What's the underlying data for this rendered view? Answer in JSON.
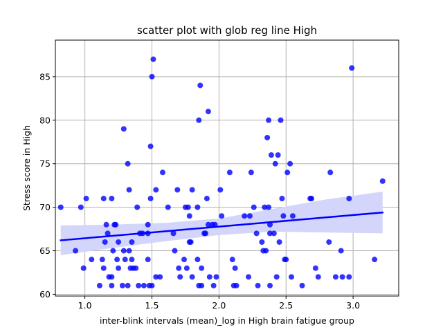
{
  "chart_data": {
    "type": "scatter",
    "title": "scatter plot with glob reg line High",
    "xlabel": "inter-blink intervals (mean)_log in High brain fatigue group",
    "ylabel": "Stress score in High",
    "xlim": [
      0.78,
      3.34
    ],
    "ylim": [
      59.8,
      89.2
    ],
    "xticks": [
      1.0,
      1.5,
      2.0,
      2.5,
      3.0
    ],
    "xtick_labels": [
      "1.0",
      "1.5",
      "2.0",
      "2.5",
      "3.0"
    ],
    "yticks": [
      60,
      65,
      70,
      75,
      80,
      85
    ],
    "ytick_labels": [
      "60",
      "65",
      "70",
      "75",
      "80",
      "85"
    ],
    "grid": true,
    "point_color": "#0000ff",
    "regression": {
      "color": "#0000ff",
      "start": [
        0.82,
        66.2
      ],
      "end": [
        3.22,
        69.4
      ],
      "ci_band_color": "#d3d5fb",
      "ci_band": [
        [
          0.82,
          64.5,
          67.9
        ],
        [
          1.2,
          65.3,
          68.0
        ],
        [
          1.6,
          66.1,
          68.2
        ],
        [
          2.0,
          66.8,
          68.7
        ],
        [
          2.4,
          67.2,
          69.8
        ],
        [
          2.8,
          67.1,
          70.9
        ],
        [
          3.22,
          67.0,
          71.8
        ]
      ]
    },
    "points": [
      {
        "x": 0.82,
        "y": 70
      },
      {
        "x": 0.93,
        "y": 65
      },
      {
        "x": 0.97,
        "y": 70
      },
      {
        "x": 0.99,
        "y": 63
      },
      {
        "x": 1.01,
        "y": 71
      },
      {
        "x": 1.05,
        "y": 64
      },
      {
        "x": 1.11,
        "y": 61
      },
      {
        "x": 1.13,
        "y": 64
      },
      {
        "x": 1.14,
        "y": 71
      },
      {
        "x": 1.14,
        "y": 63
      },
      {
        "x": 1.15,
        "y": 66
      },
      {
        "x": 1.16,
        "y": 68
      },
      {
        "x": 1.17,
        "y": 67
      },
      {
        "x": 1.18,
        "y": 62
      },
      {
        "x": 1.2,
        "y": 71
      },
      {
        "x": 1.2,
        "y": 62
      },
      {
        "x": 1.2,
        "y": 61
      },
      {
        "x": 1.21,
        "y": 65
      },
      {
        "x": 1.22,
        "y": 68
      },
      {
        "x": 1.23,
        "y": 68
      },
      {
        "x": 1.24,
        "y": 64
      },
      {
        "x": 1.25,
        "y": 63
      },
      {
        "x": 1.25,
        "y": 66
      },
      {
        "x": 1.28,
        "y": 61
      },
      {
        "x": 1.29,
        "y": 65
      },
      {
        "x": 1.29,
        "y": 79
      },
      {
        "x": 1.3,
        "y": 64
      },
      {
        "x": 1.32,
        "y": 75
      },
      {
        "x": 1.32,
        "y": 61
      },
      {
        "x": 1.33,
        "y": 72
      },
      {
        "x": 1.33,
        "y": 65
      },
      {
        "x": 1.34,
        "y": 63
      },
      {
        "x": 1.35,
        "y": 66
      },
      {
        "x": 1.35,
        "y": 64
      },
      {
        "x": 1.36,
        "y": 63
      },
      {
        "x": 1.38,
        "y": 63
      },
      {
        "x": 1.39,
        "y": 70
      },
      {
        "x": 1.4,
        "y": 61
      },
      {
        "x": 1.41,
        "y": 67
      },
      {
        "x": 1.43,
        "y": 67
      },
      {
        "x": 1.44,
        "y": 61
      },
      {
        "x": 1.47,
        "y": 68
      },
      {
        "x": 1.47,
        "y": 67
      },
      {
        "x": 1.47,
        "y": 64
      },
      {
        "x": 1.48,
        "y": 61
      },
      {
        "x": 1.49,
        "y": 77
      },
      {
        "x": 1.49,
        "y": 71
      },
      {
        "x": 1.5,
        "y": 85
      },
      {
        "x": 1.5,
        "y": 61
      },
      {
        "x": 1.51,
        "y": 87
      },
      {
        "x": 1.53,
        "y": 72
      },
      {
        "x": 1.53,
        "y": 62
      },
      {
        "x": 1.56,
        "y": 62
      },
      {
        "x": 1.58,
        "y": 74
      },
      {
        "x": 1.62,
        "y": 70
      },
      {
        "x": 1.66,
        "y": 67
      },
      {
        "x": 1.67,
        "y": 65
      },
      {
        "x": 1.69,
        "y": 72
      },
      {
        "x": 1.7,
        "y": 63
      },
      {
        "x": 1.71,
        "y": 62
      },
      {
        "x": 1.74,
        "y": 64
      },
      {
        "x": 1.75,
        "y": 70
      },
      {
        "x": 1.76,
        "y": 63
      },
      {
        "x": 1.77,
        "y": 70
      },
      {
        "x": 1.78,
        "y": 69
      },
      {
        "x": 1.78,
        "y": 66
      },
      {
        "x": 1.79,
        "y": 66
      },
      {
        "x": 1.8,
        "y": 62
      },
      {
        "x": 1.8,
        "y": 72
      },
      {
        "x": 1.84,
        "y": 70
      },
      {
        "x": 1.84,
        "y": 64
      },
      {
        "x": 1.85,
        "y": 61
      },
      {
        "x": 1.85,
        "y": 80
      },
      {
        "x": 1.86,
        "y": 84
      },
      {
        "x": 1.87,
        "y": 63
      },
      {
        "x": 1.87,
        "y": 61
      },
      {
        "x": 1.89,
        "y": 67
      },
      {
        "x": 1.9,
        "y": 67
      },
      {
        "x": 1.91,
        "y": 71
      },
      {
        "x": 1.92,
        "y": 68
      },
      {
        "x": 1.92,
        "y": 81
      },
      {
        "x": 1.93,
        "y": 62
      },
      {
        "x": 1.95,
        "y": 68
      },
      {
        "x": 1.96,
        "y": 61
      },
      {
        "x": 1.97,
        "y": 68
      },
      {
        "x": 1.98,
        "y": 62
      },
      {
        "x": 2.01,
        "y": 72
      },
      {
        "x": 2.02,
        "y": 69
      },
      {
        "x": 2.08,
        "y": 74
      },
      {
        "x": 2.1,
        "y": 64
      },
      {
        "x": 2.11,
        "y": 61
      },
      {
        "x": 2.12,
        "y": 63
      },
      {
        "x": 2.13,
        "y": 61
      },
      {
        "x": 2.19,
        "y": 69
      },
      {
        "x": 2.22,
        "y": 62
      },
      {
        "x": 2.23,
        "y": 69
      },
      {
        "x": 2.24,
        "y": 74
      },
      {
        "x": 2.26,
        "y": 70
      },
      {
        "x": 2.28,
        "y": 67
      },
      {
        "x": 2.29,
        "y": 61
      },
      {
        "x": 2.32,
        "y": 66
      },
      {
        "x": 2.33,
        "y": 65
      },
      {
        "x": 2.34,
        "y": 70
      },
      {
        "x": 2.35,
        "y": 65
      },
      {
        "x": 2.36,
        "y": 78
      },
      {
        "x": 2.37,
        "y": 80
      },
      {
        "x": 2.37,
        "y": 70
      },
      {
        "x": 2.38,
        "y": 68
      },
      {
        "x": 2.38,
        "y": 67
      },
      {
        "x": 2.38,
        "y": 61
      },
      {
        "x": 2.39,
        "y": 76
      },
      {
        "x": 2.41,
        "y": 67
      },
      {
        "x": 2.42,
        "y": 75
      },
      {
        "x": 2.43,
        "y": 62
      },
      {
        "x": 2.44,
        "y": 76
      },
      {
        "x": 2.45,
        "y": 66
      },
      {
        "x": 2.46,
        "y": 80
      },
      {
        "x": 2.47,
        "y": 71
      },
      {
        "x": 2.48,
        "y": 69
      },
      {
        "x": 2.49,
        "y": 64
      },
      {
        "x": 2.5,
        "y": 64
      },
      {
        "x": 2.51,
        "y": 74
      },
      {
        "x": 2.53,
        "y": 75
      },
      {
        "x": 2.54,
        "y": 62
      },
      {
        "x": 2.55,
        "y": 69
      },
      {
        "x": 2.62,
        "y": 61
      },
      {
        "x": 2.68,
        "y": 71
      },
      {
        "x": 2.69,
        "y": 71
      },
      {
        "x": 2.72,
        "y": 63
      },
      {
        "x": 2.74,
        "y": 62
      },
      {
        "x": 2.82,
        "y": 66
      },
      {
        "x": 2.83,
        "y": 74
      },
      {
        "x": 2.87,
        "y": 62
      },
      {
        "x": 2.91,
        "y": 65
      },
      {
        "x": 2.92,
        "y": 62
      },
      {
        "x": 2.97,
        "y": 71
      },
      {
        "x": 2.97,
        "y": 62
      },
      {
        "x": 2.99,
        "y": 86
      },
      {
        "x": 3.16,
        "y": 64
      },
      {
        "x": 3.22,
        "y": 73
      }
    ]
  }
}
